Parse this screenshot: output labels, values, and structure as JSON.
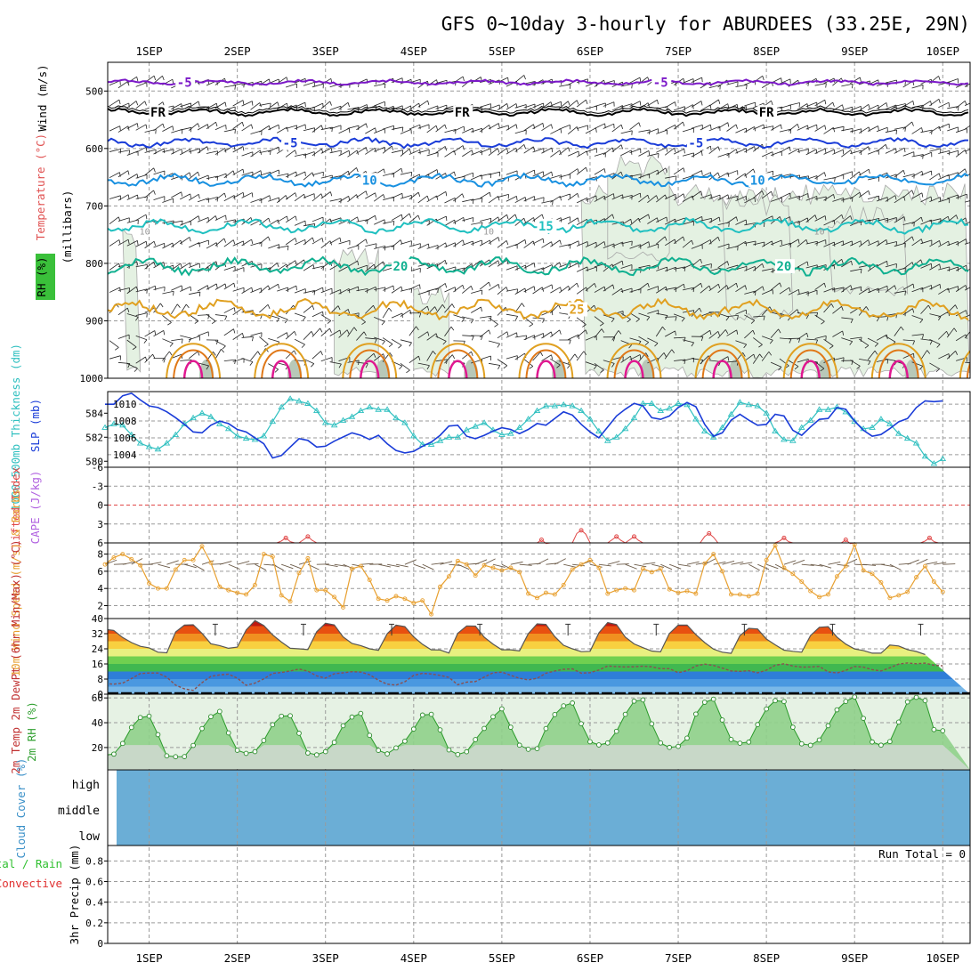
{
  "chart_data": {
    "type": "meteogram",
    "title": "GFS 0~10day 3-hourly for ABURDEES (33.25E, 29N)",
    "dates": [
      "1SEP",
      "2SEP",
      "3SEP",
      "4SEP",
      "5SEP",
      "6SEP",
      "7SEP",
      "8SEP",
      "9SEP",
      "10SEP"
    ],
    "days_range": [
      0.53,
      10.31
    ],
    "colors": {
      "purple": "#7b18c8",
      "black": "#000000",
      "blue": "#1a3cd8",
      "lightblue": "#1890e0",
      "cyan": "#20c0c0",
      "teal": "#10b090",
      "gold": "#e0a020",
      "orange": "#e07818",
      "magenta": "#e01890",
      "slp": "#1a3cd8",
      "thickness": "#30c0c0",
      "li": "#e04848",
      "cape": "#b060e0",
      "wind10": "#e8a030",
      "rh": "#40b040",
      "cloud": "#6baed6",
      "precip_total": "#30c030",
      "precip_conv": "#e03030"
    },
    "panels": {
      "upper_air": {
        "ylabel": "(millibars)",
        "legend": {
          "wind": "Wind (m/s)",
          "temperature": "Temperature (°C)",
          "rh": "RH (%)"
        },
        "yticks": [
          "500",
          "600",
          "700",
          "800",
          "900",
          "1000"
        ],
        "yrange": [
          450,
          1000
        ],
        "isotherms": [
          {
            "label": "-5",
            "p": 485,
            "color": "purple",
            "labels": [
              {
                "x": 1.4,
                "t": "-5"
              },
              {
                "x": 6.8,
                "t": "-5"
              }
            ]
          },
          {
            "label": "FR",
            "p": 537,
            "color": "black",
            "labels": [
              {
                "x": 1.1,
                "t": "FR"
              },
              {
                "x": 4.55,
                "t": "FR"
              },
              {
                "x": 8.0,
                "t": "FR"
              }
            ]
          },
          {
            "label": "-5",
            "p": 590,
            "color": "blue",
            "labels": [
              {
                "x": 2.6,
                "t": "-5"
              },
              {
                "x": 7.2,
                "t": "-5"
              }
            ]
          },
          {
            "label": "10",
            "p": 655,
            "color": "lightblue",
            "labels": [
              {
                "x": 3.5,
                "t": "10"
              },
              {
                "x": 7.9,
                "t": "10"
              }
            ]
          },
          {
            "label": "15",
            "p": 735,
            "color": "cyan",
            "labels": [
              {
                "x": 5.5,
                "t": "15"
              }
            ]
          },
          {
            "label": "20",
            "p": 805,
            "color": "teal",
            "labels": [
              {
                "x": 3.85,
                "t": "20"
              },
              {
                "x": 8.2,
                "t": "20"
              }
            ]
          },
          {
            "label": "25",
            "p": 880,
            "color": "gold",
            "labels": [
              {
                "x": 5.85,
                "t": "25"
              }
            ]
          }
        ],
        "rh_labels": [
          {
            "x": 0.95,
            "t": "10"
          },
          {
            "x": 4.85,
            "t": "10"
          },
          {
            "x": 8.6,
            "t": "10"
          }
        ]
      },
      "slp": {
        "ylabel_left": "1000-500mb Thickness (dm)",
        "ylabel_right": "SLP (mb)",
        "yticks_left": [
          "580",
          "582",
          "584"
        ],
        "yticks_right": [
          "1004",
          "1006",
          "1008",
          "1010"
        ],
        "slp_range": [
          1002.5,
          1011.5
        ],
        "thk_range": [
          579.5,
          585.8
        ],
        "slp_values": [
          1010.0,
          1010.0,
          1011.0,
          1011.3,
          1010.5,
          1009.8,
          1009.6,
          1009.1,
          1008.4,
          1007.6,
          1006.7,
          1006.6,
          1007.5,
          1008.0,
          1007.7,
          1007.0,
          1006.7,
          1006.0,
          1005.3,
          1003.6,
          1003.9,
          1004.9,
          1005.9,
          1005.7,
          1004.9,
          1005.0,
          1005.6,
          1006.1,
          1006.6,
          1006.3,
          1005.8,
          1006.3,
          1005.3,
          1004.5,
          1004.2,
          1004.4,
          1005.0,
          1005.5,
          1006.3,
          1007.4,
          1007.5,
          1006.2,
          1005.9,
          1006.3,
          1006.8,
          1007.2,
          1007.0,
          1006.5,
          1007.0,
          1007.7,
          1007.5,
          1008.3,
          1009.1,
          1008.7,
          1007.6,
          1006.7,
          1006.0,
          1007.3,
          1008.6,
          1009.4,
          1010.1,
          1009.8,
          1008.4,
          1008.2,
          1008.6,
          1009.6,
          1010.2,
          1009.7,
          1007.6,
          1006.2,
          1006.6,
          1008.1,
          1008.8,
          1008.1,
          1007.5,
          1007.6,
          1008.8,
          1008.6,
          1006.9,
          1006.3,
          1007.3,
          1008.2,
          1008.3,
          1009.6,
          1009.4,
          1008.0,
          1006.9,
          1006.2,
          1006.4,
          1007.1,
          1007.9,
          1008.3,
          1009.6,
          1010.4,
          1010.3,
          1010.4
        ],
        "thk_values": [
          582.8,
          583.1,
          583.0,
          582.2,
          581.5,
          581.2,
          581.0,
          581.5,
          582.2,
          583.1,
          583.6,
          584.0,
          583.7,
          583.1,
          582.7,
          582.1,
          581.9,
          581.8,
          582.1,
          583.3,
          584.5,
          585.2,
          585.0,
          584.8,
          584.2,
          583.2,
          583.0,
          583.4,
          583.7,
          584.2,
          584.5,
          584.3,
          584.3,
          583.6,
          583.2,
          582.1,
          581.4,
          581.4,
          581.7,
          582.0,
          582.0,
          582.6,
          582.9,
          583.2,
          582.6,
          582.2,
          582.3,
          582.8,
          583.5,
          584.2,
          584.6,
          584.6,
          584.7,
          584.6,
          584.2,
          583.5,
          582.5,
          581.7,
          582.0,
          582.7,
          583.6,
          584.8,
          584.8,
          584.2,
          584.4,
          584.8,
          584.7,
          583.5,
          582.5,
          582.0,
          582.8,
          583.9,
          584.9,
          584.7,
          584.6,
          584.0,
          582.5,
          581.8,
          581.7,
          582.8,
          583.4,
          584.3,
          584.3,
          584.5,
          584.1,
          583.3,
          582.7,
          582.8,
          583.5,
          583.1,
          582.3,
          581.9,
          581.5,
          580.4,
          579.8,
          580.2
        ]
      },
      "stability": {
        "ylabel_left": "Lifted Index",
        "ylabel_right": "CAPE (J/kg)",
        "yticks": [
          "-6",
          "-3",
          "0",
          "3",
          "6"
        ],
        "li_range": [
          -6,
          6
        ],
        "li_peaks": [
          [
            2.55,
            5.2
          ],
          [
            2.8,
            5.0
          ],
          [
            5.45,
            5.5
          ],
          [
            5.9,
            4.0
          ],
          [
            6.3,
            5.0
          ],
          [
            6.5,
            5.0
          ],
          [
            7.35,
            4.5
          ],
          [
            8.2,
            5.2
          ],
          [
            8.9,
            5.5
          ],
          [
            9.85,
            5.2
          ]
        ]
      },
      "wind10m": {
        "ylabel": "10m Wind Speed (m/s) & Barbs",
        "yticks": [
          "2",
          "4",
          "6",
          "8"
        ],
        "yrange": [
          0.5,
          9.3
        ],
        "values": [
          6.8,
          7.6,
          8.0,
          7.4,
          6.7,
          4.6,
          4.0,
          4.0,
          6.2,
          7.3,
          7.3,
          8.9,
          7.0,
          4.2,
          3.8,
          3.5,
          3.3,
          4.4,
          8.0,
          7.7,
          3.2,
          2.5,
          5.8,
          7.5,
          3.8,
          3.8,
          3.0,
          1.8,
          6.3,
          6.6,
          5.0,
          2.8,
          2.6,
          3.1,
          2.8,
          2.3,
          2.6,
          1.0,
          4.2,
          5.4,
          7.2,
          6.8,
          5.5,
          6.7,
          6.4,
          6.1,
          6.4,
          5.9,
          3.4,
          2.9,
          3.5,
          3.3,
          4.4,
          6.2,
          6.8,
          7.3,
          6.4,
          3.4,
          3.8,
          4.0,
          3.8,
          6.3,
          5.9,
          6.3,
          3.9,
          3.5,
          3.7,
          3.4,
          6.9,
          8.0,
          6.0,
          3.3,
          3.3,
          3.1,
          3.4,
          7.3,
          9.0,
          6.4,
          5.7,
          4.8,
          3.7,
          3.0,
          3.3,
          5.4,
          6.6,
          9.1,
          6.1,
          5.7,
          4.7,
          2.9,
          3.2,
          3.6,
          5.3,
          6.6,
          4.8,
          3.6
        ]
      },
      "temperature": {
        "ylabel": "2m Temp 2m DewPt (6hr Min/Max) (°C)",
        "yticks": [
          "0",
          "8",
          "16",
          "24",
          "32",
          "40"
        ],
        "yrange": [
          0,
          40
        ],
        "temp_values": [
          34.3,
          33.7,
          30.0,
          27.3,
          25.3,
          24.5,
          22.2,
          21.9,
          32.9,
          36.5,
          36.7,
          32.2,
          26.7,
          25.7,
          24.3,
          24.9,
          34.0,
          38.9,
          36.3,
          31.4,
          27.6,
          24.3,
          24.0,
          23.6,
          33.0,
          37.5,
          36.6,
          30.3,
          26.8,
          25.7,
          24.0,
          23.2,
          32.0,
          36.5,
          35.7,
          30.3,
          26.4,
          23.5,
          23.4,
          21.8,
          32.2,
          36.1,
          36.0,
          30.1,
          26.5,
          23.5,
          23.5,
          22.9,
          32.0,
          37.2,
          36.9,
          30.5,
          25.9,
          24.0,
          22.5,
          22.7,
          32.4,
          37.9,
          36.8,
          30.2,
          26.6,
          24.6,
          22.8,
          22.4,
          32.1,
          36.5,
          36.5,
          31.5,
          27.3,
          23.8,
          22.2,
          21.6,
          31.0,
          34.8,
          34.5,
          29.2,
          26.1,
          23.3,
          22.7,
          22.2,
          31.0,
          35.4,
          35.7,
          30.2,
          26.5,
          23.9,
          23.1,
          21.7,
          21.7,
          26.0,
          25.5,
          23.6,
          22.6,
          21.0
        ],
        "dew_values": [
          5.6,
          5.3,
          5.9,
          8.3,
          10.9,
          11.2,
          11.2,
          9.0,
          4.8,
          2.8,
          2.0,
          6.1,
          9.4,
          10.2,
          10.6,
          8.5,
          4.7,
          5.9,
          8.1,
          11.0,
          11.5,
          12.3,
          13.3,
          12.2,
          9.7,
          8.5,
          10.8,
          11.3,
          11.9,
          11.7,
          10.3,
          7.4,
          5.3,
          4.8,
          6.6,
          10.0,
          11.0,
          10.7,
          10.0,
          8.9,
          5.0,
          6.4,
          6.7,
          9.1,
          11.3,
          11.7,
          10.0,
          8.4,
          7.6,
          8.4,
          11.1,
          12.3,
          13.2,
          13.4,
          11.1,
          11.4,
          12.8,
          14.9,
          14.6,
          14.4,
          14.5,
          14.8,
          14.5,
          13.5,
          13.5,
          11.4,
          12.4,
          14.9,
          15.9,
          15.2,
          13.8,
          12.3,
          12.1,
          12.4,
          11.3,
          12.7,
          15.3,
          16.1,
          14.9,
          14.3,
          14.4,
          14.7,
          11.8,
          11.2,
          12.6,
          14.7,
          14.3,
          13.0,
          12.3,
          14.0,
          15.9,
          16.5,
          16.1,
          16.4,
          15.3,
          15.0
        ]
      },
      "rh2m": {
        "ylabel": "2m RH (%)",
        "yticks": [
          "20",
          "40",
          "60"
        ],
        "yrange": [
          2,
          63
        ],
        "values": [
          13.9,
          14.7,
          23.3,
          36.2,
          44.2,
          45.3,
          30.4,
          13.3,
          12.6,
          12.7,
          21.7,
          35.3,
          44.9,
          49.1,
          31.8,
          17.8,
          15.3,
          16.7,
          25.7,
          38.4,
          45.3,
          45.6,
          31.5,
          15.6,
          14.1,
          16.7,
          24.2,
          37.6,
          44.6,
          47.5,
          29.8,
          17.7,
          14.9,
          19.7,
          25.1,
          34.9,
          46.2,
          46.8,
          34.2,
          18.1,
          14.4,
          16.6,
          26.4,
          35.4,
          44.8,
          51.2,
          36.4,
          21.9,
          18.6,
          19.1,
          35.3,
          46.6,
          53.6,
          55.9,
          39.2,
          24.7,
          22.1,
          23.7,
          33.1,
          46.8,
          57.4,
          58.4,
          39.1,
          23.7,
          20.1,
          20.9,
          27.6,
          47.0,
          56.5,
          59.0,
          42.2,
          26.5,
          23.5,
          24.4,
          38.5,
          51.1,
          57.8,
          57.1,
          36.4,
          23.0,
          21.8,
          26.1,
          37.6,
          50.4,
          57.2,
          60.8,
          43.5,
          24.5,
          21.9,
          24.8,
          40.5,
          56.8,
          60.5,
          57.8,
          34.5,
          33.5
        ]
      },
      "cloud": {
        "ylabel": "Cloud Cover (%)",
        "levels": [
          "high",
          "middle",
          "low"
        ]
      },
      "precip": {
        "ylabel_left": "Total / Rain",
        "ylabel_left2": "Convective",
        "ylabel": "3hr Precip (mm)",
        "yticks": [
          "0",
          "0.2",
          "0.4",
          "0.6",
          "0.8"
        ],
        "yrange": [
          0,
          0.95
        ],
        "run_total": "Run Total = 0"
      }
    }
  }
}
